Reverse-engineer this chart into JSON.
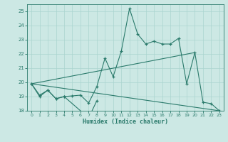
{
  "xlabel": "Humidex (Indice chaleur)",
  "x_all": [
    0,
    1,
    2,
    3,
    4,
    5,
    6,
    7,
    8,
    9,
    10,
    11,
    12,
    13,
    14,
    15,
    16,
    17,
    18,
    19,
    20,
    21,
    22,
    23
  ],
  "line1_y": [
    19.9,
    19.1,
    19.45,
    18.85,
    19.0,
    19.05,
    19.1,
    18.55,
    19.7,
    21.7,
    20.4,
    22.2,
    25.2,
    23.4,
    22.7,
    22.9,
    22.7,
    22.7,
    23.1,
    19.9,
    22.1,
    18.6,
    18.5,
    18.0
  ],
  "line2_x": [
    0,
    1,
    2,
    3,
    4,
    7,
    8
  ],
  "line2_y": [
    19.9,
    19.0,
    19.45,
    18.85,
    19.0,
    17.5,
    18.7
  ],
  "line3_x": [
    0,
    20
  ],
  "line3_y": [
    19.9,
    22.1
  ],
  "line4_x": [
    0,
    23
  ],
  "line4_y": [
    19.9,
    18.0
  ],
  "color": "#2a7a6b",
  "bg_color": "#cce8e4",
  "grid_color": "#aad4cf",
  "ylim": [
    18,
    25.5
  ],
  "xlim": [
    -0.5,
    23.5
  ],
  "yticks": [
    18,
    19,
    20,
    21,
    22,
    23,
    24,
    25
  ],
  "xticks": [
    0,
    1,
    2,
    3,
    4,
    5,
    6,
    7,
    8,
    9,
    10,
    11,
    12,
    13,
    14,
    15,
    16,
    17,
    18,
    19,
    20,
    21,
    22,
    23
  ]
}
